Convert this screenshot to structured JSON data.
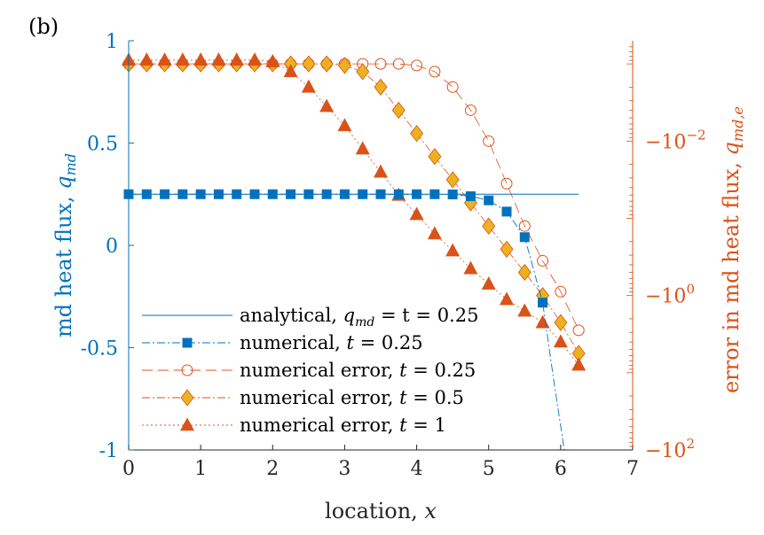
{
  "panel_label": "(b)",
  "colors": {
    "blue": "#0072BD",
    "orange": "#D95319",
    "yellow": "#EDB120",
    "dark_orange": "#D95319"
  },
  "chart_data": {
    "type": "line",
    "x_label_text": "location, ",
    "x_label_var": "x",
    "left_axis": {
      "label_text": "md heat flux, ",
      "label_var": "q",
      "label_sub": "md",
      "ylim": [
        -1,
        1
      ],
      "ticks": [
        "-1",
        "-0.5",
        "0",
        "0.5",
        "1"
      ],
      "tick_values": [
        -1,
        -0.5,
        0,
        0.5,
        1
      ]
    },
    "right_axis": {
      "label_text": "error in md heat flux, ",
      "label_var": "q",
      "label_sub": "md,e",
      "scale": "log (negative)",
      "tick_labels": [
        {
          "prefix": "−10",
          "exp": "−2"
        },
        {
          "prefix": "−10",
          "exp": "0"
        },
        {
          "prefix": "−10",
          "exp": "2"
        }
      ],
      "tick_exponents": [
        -2,
        0,
        2
      ],
      "log_range": [
        -3.3,
        2
      ]
    },
    "xlim": [
      0,
      7
    ],
    "x_ticks": [
      "0",
      "1",
      "2",
      "3",
      "4",
      "5",
      "6",
      "7"
    ],
    "x_tick_values": [
      0,
      1,
      2,
      3,
      4,
      5,
      6,
      7
    ],
    "legend": [
      {
        "text": "analytical, ",
        "var": "q",
        "sub": "md",
        "tail": " = t = 0.25",
        "style": "solid",
        "marker": "none",
        "color": "#0072BD"
      },
      {
        "text": "numerical, ",
        "var": "t",
        "sub": "",
        "tail": " = 0.25",
        "style": "dashdot",
        "marker": "square",
        "color": "#0072BD"
      },
      {
        "text": "numerical error, ",
        "var": "t",
        "sub": "",
        "tail": " = 0.25",
        "style": "dash",
        "marker": "circle",
        "color": "#D95319"
      },
      {
        "text": "numerical error, ",
        "var": "t",
        "sub": "",
        "tail": " = 0.5",
        "style": "dashdot",
        "marker": "diamond",
        "color": "#D95319"
      },
      {
        "text": "numerical error, ",
        "var": "t",
        "sub": "",
        "tail": " = 1",
        "style": "dot",
        "marker": "triangle",
        "color": "#D95319"
      }
    ],
    "series": [
      {
        "name": "analytical, q_md = t = 0.25",
        "axis": "left",
        "x": [
          0,
          6.25
        ],
        "y": [
          0.25,
          0.25
        ]
      },
      {
        "name": "numerical, t = 0.25",
        "axis": "left",
        "x": [
          0,
          0.25,
          0.5,
          0.75,
          1,
          1.25,
          1.5,
          1.75,
          2,
          2.25,
          2.5,
          2.75,
          3,
          3.25,
          3.5,
          3.75,
          4,
          4.25,
          4.5,
          4.75,
          5,
          5.25,
          5.5,
          5.75
        ],
        "y": [
          0.25,
          0.25,
          0.25,
          0.25,
          0.25,
          0.25,
          0.25,
          0.25,
          0.25,
          0.25,
          0.25,
          0.25,
          0.25,
          0.25,
          0.25,
          0.25,
          0.25,
          0.25,
          0.249,
          0.24,
          0.22,
          0.165,
          0.04,
          -0.28
        ],
        "line_x": [
          5.75,
          5.9,
          6.05
        ],
        "line_y": [
          -0.28,
          -0.65,
          -1.0
        ]
      },
      {
        "name": "numerical error, t = 0.25",
        "axis": "right",
        "x": [
          0,
          0.25,
          0.5,
          0.75,
          1,
          1.25,
          1.5,
          1.75,
          2,
          2.25,
          2.5,
          2.75,
          3,
          3.25,
          3.5,
          3.75,
          4,
          4.25,
          4.5,
          4.75,
          5,
          5.25,
          5.5,
          5.75,
          6,
          6.25
        ],
        "log10_abs": [
          -3.0,
          -3.0,
          -3.0,
          -3.0,
          -3.0,
          -3.0,
          -3.0,
          -3.0,
          -3.0,
          -3.0,
          -3.0,
          -3.0,
          -3.0,
          -3.0,
          -3.0,
          -3.0,
          -2.98,
          -2.9,
          -2.7,
          -2.4,
          -2.0,
          -1.45,
          -0.9,
          -0.45,
          -0.05,
          0.45
        ]
      },
      {
        "name": "numerical error, t = 0.5",
        "axis": "right",
        "x": [
          0,
          0.25,
          0.5,
          0.75,
          1,
          1.25,
          1.5,
          1.75,
          2,
          2.25,
          2.5,
          2.75,
          3,
          3.25,
          3.5,
          3.75,
          4,
          4.25,
          4.5,
          4.75,
          5,
          5.25,
          5.5,
          5.75,
          6,
          6.25
        ],
        "log10_abs": [
          -3.0,
          -3.0,
          -3.0,
          -3.0,
          -3.0,
          -3.0,
          -3.0,
          -3.0,
          -3.0,
          -3.0,
          -3.0,
          -3.0,
          -2.98,
          -2.9,
          -2.7,
          -2.4,
          -2.1,
          -1.8,
          -1.5,
          -1.2,
          -0.9,
          -0.6,
          -0.3,
          0.0,
          0.35,
          0.75
        ]
      },
      {
        "name": "numerical error, t = 1",
        "axis": "right",
        "x": [
          0,
          0.25,
          0.5,
          0.75,
          1,
          1.25,
          1.5,
          1.75,
          2,
          2.25,
          2.5,
          2.75,
          3,
          3.25,
          3.5,
          3.75,
          4,
          4.25,
          4.5,
          4.75,
          5,
          5.25,
          5.5,
          5.75,
          6,
          6.25
        ],
        "log10_abs": [
          -3.05,
          -3.05,
          -3.05,
          -3.05,
          -3.05,
          -3.05,
          -3.05,
          -3.05,
          -3.03,
          -2.9,
          -2.7,
          -2.45,
          -2.2,
          -1.9,
          -1.6,
          -1.3,
          -1.05,
          -0.8,
          -0.58,
          -0.35,
          -0.15,
          0.05,
          0.2,
          0.35,
          0.6,
          0.9
        ]
      }
    ]
  }
}
